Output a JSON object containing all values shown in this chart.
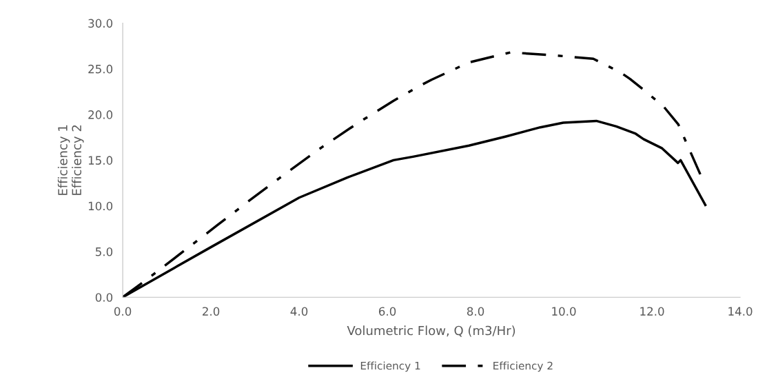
{
  "chart_data": {
    "type": "line",
    "xlabel": "Volumetric Flow, Q (m3/Hr)",
    "ylabel": "Efficiency 1\nEfficiency 2",
    "xlim": [
      0,
      14
    ],
    "xticks": [
      {
        "value": 0,
        "label": "0.0"
      },
      {
        "value": 2,
        "label": "2.0"
      },
      {
        "value": 4,
        "label": "4.0"
      },
      {
        "value": 6,
        "label": "6.0"
      },
      {
        "value": 8,
        "label": "8.0"
      },
      {
        "value": 10,
        "label": "10.0"
      },
      {
        "value": 12,
        "label": "12.0"
      },
      {
        "value": 14,
        "label": "14.0"
      }
    ],
    "ylim": [
      0,
      30
    ],
    "yticks": [
      {
        "value": 0,
        "label": "0.0"
      },
      {
        "value": 5,
        "label": "5.0"
      },
      {
        "value": 10,
        "label": "10.0"
      },
      {
        "value": 15,
        "label": "15.0"
      },
      {
        "value": 20,
        "label": "20.0"
      },
      {
        "value": 25,
        "label": "25.0"
      },
      {
        "value": 30,
        "label": "30.0"
      }
    ],
    "grid": false,
    "legend": "bottom",
    "marker": "none",
    "series": [
      {
        "name": "Efficiency 1",
        "color": "#000000",
        "line_style": "solid",
        "x": [
          0,
          1.97,
          4.0,
          5.09,
          6.14,
          6.6,
          7.85,
          8.69,
          9.47,
          9.99,
          10.74,
          11.19,
          11.63,
          11.81,
          12.23,
          12.59,
          12.65,
          13.21
        ],
        "values": [
          0,
          5.4,
          10.9,
          13.1,
          15.0,
          15.4,
          16.6,
          17.6,
          18.6,
          19.1,
          19.3,
          18.7,
          17.9,
          17.3,
          16.3,
          14.7,
          15.0,
          10.1
        ]
      },
      {
        "name": "Efficiency 2",
        "color": "#000000",
        "line_style": "dashdot",
        "x": [
          0,
          0.59,
          1.37,
          2.15,
          2.93,
          3.71,
          4.51,
          5.31,
          6.14,
          6.76,
          7.0,
          7.85,
          8.79,
          9.73,
          10.67,
          11.29,
          11.5,
          11.76,
          12.26,
          12.6,
          12.8,
          13.11
        ],
        "values": [
          0,
          2.1,
          5.0,
          7.9,
          10.8,
          13.6,
          16.4,
          19.0,
          21.5,
          23.2,
          23.8,
          25.7,
          26.8,
          26.5,
          26.1,
          24.6,
          23.9,
          22.9,
          20.9,
          18.9,
          16.7,
          13.3
        ]
      }
    ]
  }
}
